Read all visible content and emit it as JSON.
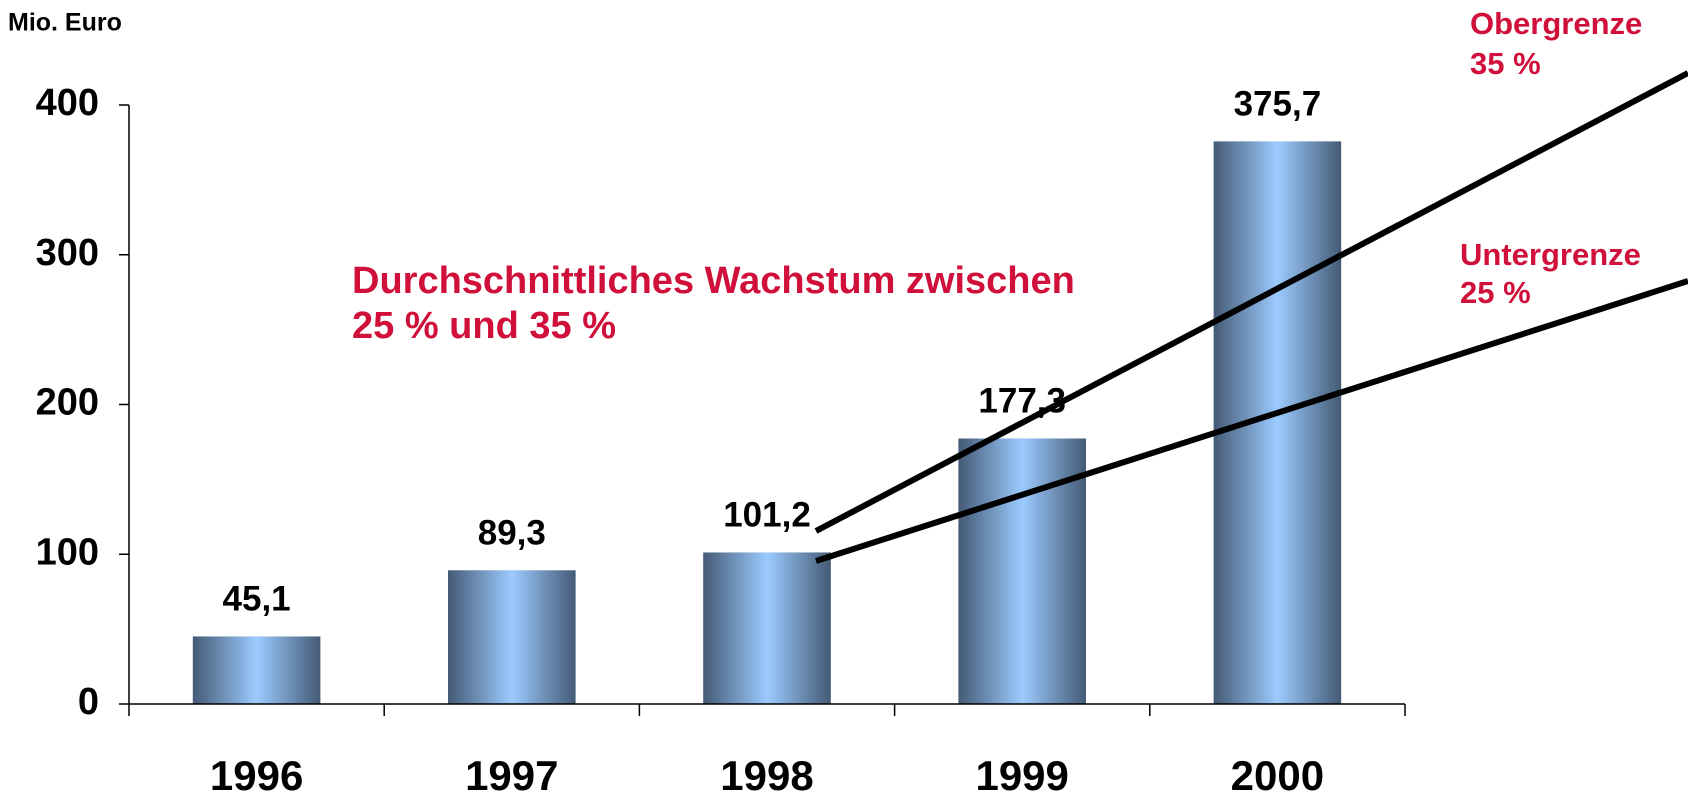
{
  "chart_data": {
    "type": "bar",
    "y_axis_label": "Mio. Euro",
    "categories": [
      "1996",
      "1997",
      "1998",
      "1999",
      "2000"
    ],
    "values": [
      45.1,
      89.3,
      101.2,
      177.3,
      375.7
    ],
    "value_labels": [
      "45,1",
      "89,3",
      "101,2",
      "177,3",
      "375,7"
    ],
    "ylim": [
      0,
      400
    ],
    "yticks": [
      0,
      100,
      200,
      300,
      400
    ],
    "annotation": [
      "Durchschnittliches Wachstum zwischen",
      "25 % und 35 %"
    ],
    "upper_bound": {
      "name": "Obergrenze",
      "rate": "35 %"
    },
    "lower_bound": {
      "name": "Untergrenze",
      "rate": "25 %"
    },
    "color": "#9ccbff",
    "edge_color": "#445a75"
  }
}
